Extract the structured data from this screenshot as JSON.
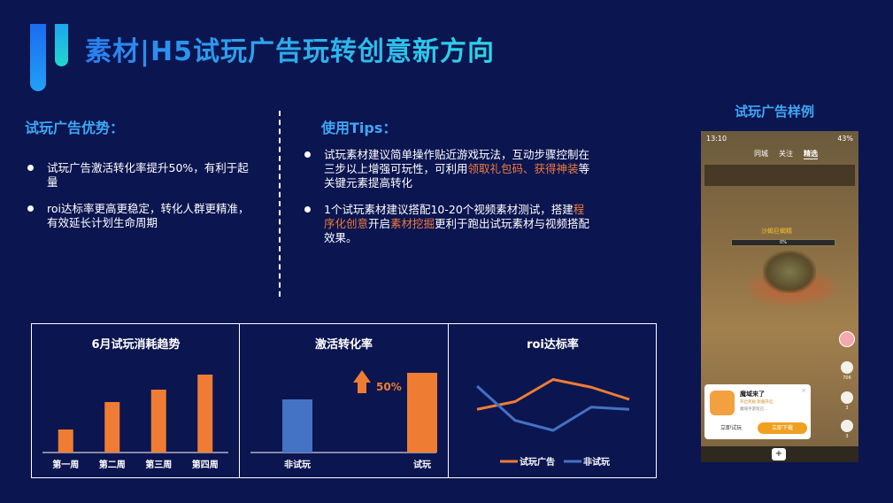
{
  "header": {
    "title": "素材|H5试玩广告玩转创意新方向"
  },
  "advantages": {
    "heading": "试玩广告优势：",
    "items": [
      "试玩广告激活转化率提升50%，有利于起量",
      "roi达标率更高更稳定，转化人群更精准，有效延长计划生命周期"
    ]
  },
  "tips": {
    "heading": "使用Tips：",
    "item1": {
      "pre": "试玩素材建议简单操作贴近游戏玩法，互动步骤控制在三步以上增强可玩性，可利用",
      "hl1": "领取礼包码",
      "sep": "、",
      "hl2": "获得神装",
      "post": "等关键元素提高转化"
    },
    "item2": {
      "pre": "1个试玩素材建议搭配10-20个视频素材测试，搭建",
      "hl1": "程序化创意",
      "mid": "开启",
      "hl2": "素材挖掘",
      "post": "更利于跑出试玩素材与视频搭配效果。"
    }
  },
  "sample": {
    "title": "试玩广告样例",
    "status_time": "13:10",
    "status_battery": "43%",
    "tabs": [
      "同城",
      "关注",
      "精选"
    ],
    "boss_name": "沙蝎巨蝎精",
    "hp_label": "0%",
    "card": {
      "app_name": "魔域来了",
      "tags": "开启奖励  新服开启",
      "desc": "魔域手游现已...",
      "play_label": "立即试玩",
      "download_label": "立即下载",
      "close": "×"
    },
    "side_counts": [
      "706",
      "3",
      "3"
    ],
    "add_label": "+"
  },
  "colors": {
    "orange": "#ee7d33",
    "blue": "#4472c4",
    "accent": "#3ea8f5",
    "background": "#0b1550"
  },
  "chart_data": [
    {
      "type": "bar",
      "title": "6月试玩消耗趋势",
      "categories": [
        "第一周",
        "第二周",
        "第三周",
        "第四周"
      ],
      "values": [
        26,
        57,
        71,
        88
      ],
      "ylim": [
        0,
        100
      ],
      "grid": false
    },
    {
      "type": "bar",
      "title": "激活转化率",
      "categories": [
        "非试玩",
        "试玩"
      ],
      "values": [
        60,
        90
      ],
      "ylim": [
        0,
        100
      ],
      "annotation": "50%",
      "grid": false
    },
    {
      "type": "line",
      "title": "roi达标率",
      "x": [
        1,
        2,
        3,
        4,
        5
      ],
      "series": [
        {
          "name": "试玩广告",
          "values": [
            55,
            62,
            82,
            75,
            64
          ]
        },
        {
          "name": "非试玩",
          "values": [
            76,
            45,
            36,
            57,
            55
          ]
        }
      ],
      "ylim": [
        20,
        100
      ],
      "legend": "bottom",
      "grid": false
    }
  ]
}
